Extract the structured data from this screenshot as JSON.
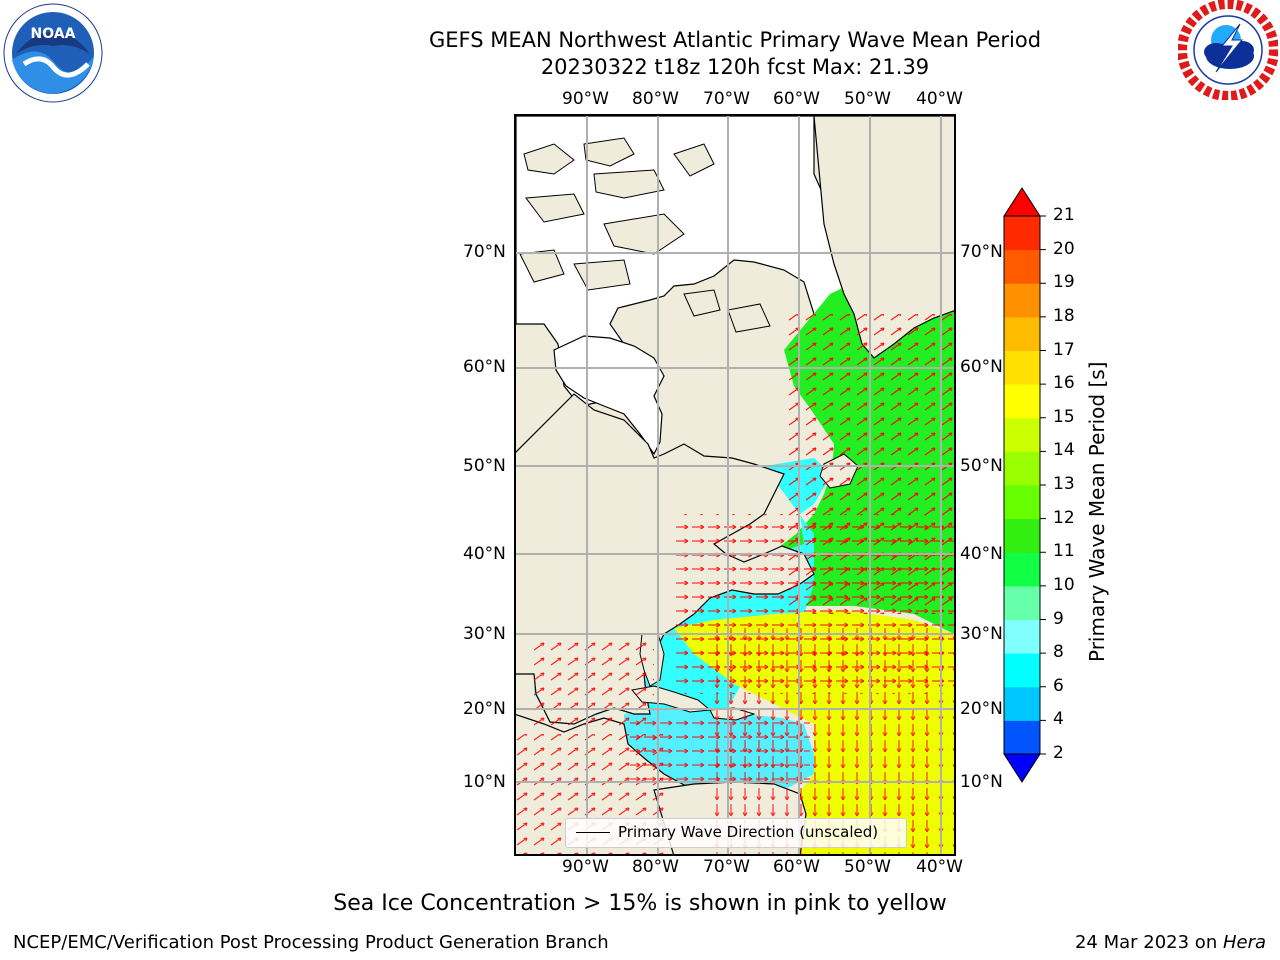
{
  "header": {
    "title_line1": "GEFS MEAN Northwest Atlantic Primary Wave Mean Period",
    "title_line2": "20230322 t18z 120h fcst   Max: 21.39"
  },
  "logos": {
    "noaa_text": "NOAA",
    "noaa_ring": "NATIONAL OCEANIC AND ATMOSPHERIC ADMINISTRATION · U.S. DEPARTMENT OF COMMERCE",
    "nws_ring": "NATIONAL WEATHER SERVICE"
  },
  "map": {
    "lon_labels": [
      "90°W",
      "80°W",
      "70°W",
      "60°W",
      "50°W",
      "40°W"
    ],
    "lat_labels": [
      "70°N",
      "60°N",
      "50°N",
      "40°N",
      "30°N",
      "20°N",
      "10°N"
    ],
    "legend_label": "Primary Wave Direction (unscaled)",
    "colors": {
      "land": "#efecdc",
      "ice": "#ffffff",
      "grid": "#b0b0b0",
      "arrows": "#ff0000"
    },
    "region_colors": {
      "shelf_cyan": "#33ffff",
      "mid_green": "#22ee22",
      "subtropic_yellow": "#eeff00",
      "caribbean_cyan": "#55f0ff",
      "southwest_yellow": "#ffee00",
      "southwest_orange": "#ffaa00",
      "southwest_red": "#ff2a00"
    }
  },
  "colorbar": {
    "label": "Primary Wave Mean Period [s]",
    "ticks": [
      "2",
      "4",
      "6",
      "8",
      "9",
      "10",
      "11",
      "12",
      "13",
      "14",
      "15",
      "16",
      "17",
      "18",
      "19",
      "20",
      "21"
    ],
    "colors": [
      "#0000ff",
      "#0055ff",
      "#00c8ff",
      "#00ffff",
      "#80ffff",
      "#66ffaa",
      "#11ff44",
      "#33ee11",
      "#66ff00",
      "#99ff00",
      "#ccff00",
      "#ffff00",
      "#ffe000",
      "#ffbb00",
      "#ff9000",
      "#ff5a00",
      "#ff2a00"
    ],
    "over_color": "#ff0000",
    "under_color": "#0000ff"
  },
  "footer": {
    "caption": "Sea Ice Concentration > 15% is shown in pink to yellow",
    "left": "NCEP/EMC/Verification Post Processing Product Generation Branch",
    "right_date": "24 Mar 2023 on ",
    "right_host": "Hera"
  }
}
